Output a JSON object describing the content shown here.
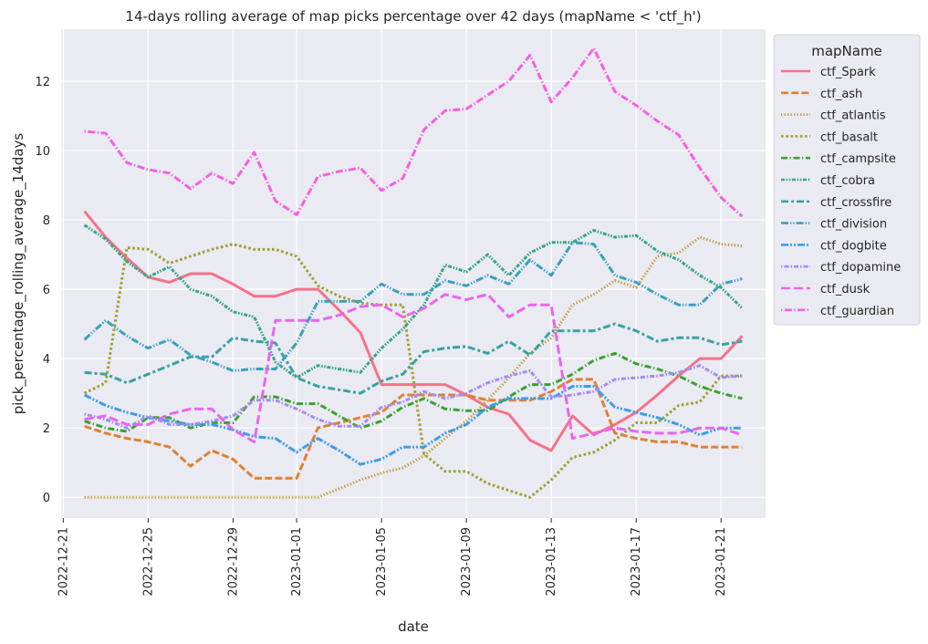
{
  "chart_data": {
    "type": "line",
    "title": "14-days rolling average of map picks percentage over 42 days (mapName < 'ctf_h')",
    "xlabel": "date",
    "ylabel": "pick_percentage_rolling_average_14days",
    "x_ticks": [
      "2022-12-21",
      "2022-12-25",
      "2022-12-29",
      "2023-01-01",
      "2023-01-05",
      "2023-01-09",
      "2023-01-13",
      "2023-01-17",
      "2023-01-21"
    ],
    "y_ticks": [
      0,
      2,
      4,
      6,
      8,
      10,
      12
    ],
    "ylim": [
      -0.6,
      13.5
    ],
    "xlim": [
      "2022-12-21",
      "2023-01-23"
    ],
    "grid": true,
    "legend": {
      "title": "mapName",
      "placement": "outside-top-right"
    },
    "x": [
      "2022-12-22",
      "2022-12-23",
      "2022-12-24",
      "2022-12-25",
      "2022-12-26",
      "2022-12-27",
      "2022-12-28",
      "2022-12-29",
      "2022-12-30",
      "2022-12-31",
      "2023-01-01",
      "2023-01-02",
      "2023-01-03",
      "2023-01-04",
      "2023-01-05",
      "2023-01-06",
      "2023-01-07",
      "2023-01-08",
      "2023-01-09",
      "2023-01-10",
      "2023-01-11",
      "2023-01-12",
      "2023-01-13",
      "2023-01-14",
      "2023-01-15",
      "2023-01-16",
      "2023-01-17",
      "2023-01-18",
      "2023-01-19",
      "2023-01-20",
      "2023-01-21",
      "2023-01-22"
    ],
    "series": [
      {
        "name": "ctf_Spark",
        "color": "#f77189",
        "dash": "solid",
        "values": [
          8.25,
          7.5,
          6.9,
          6.35,
          6.2,
          6.45,
          6.45,
          6.15,
          5.8,
          5.8,
          6.0,
          6.0,
          5.4,
          4.75,
          3.25,
          3.25,
          3.25,
          3.25,
          2.95,
          2.6,
          2.4,
          1.65,
          1.35,
          2.35,
          1.8,
          2.1,
          2.45,
          2.95,
          3.5,
          4.0,
          4.0,
          4.65
        ]
      },
      {
        "name": "ctf_ash",
        "color": "#e08131",
        "dash": "8,3.2",
        "values": [
          2.05,
          1.85,
          1.7,
          1.6,
          1.45,
          0.9,
          1.35,
          1.1,
          0.55,
          0.55,
          0.55,
          2.0,
          2.15,
          2.3,
          2.45,
          2.95,
          2.95,
          2.95,
          2.95,
          2.8,
          2.8,
          2.8,
          3.05,
          3.4,
          3.4,
          1.85,
          1.7,
          1.6,
          1.6,
          1.45,
          1.45,
          1.45
        ]
      },
      {
        "name": "ctf_atlantis",
        "color": "#bb9832",
        "dash": "1.3,2.2",
        "values": [
          0,
          0,
          0,
          0,
          0,
          0,
          0,
          0,
          0,
          0,
          0,
          0,
          0.25,
          0.5,
          0.7,
          0.85,
          1.2,
          1.7,
          2.2,
          2.8,
          3.45,
          4.15,
          4.6,
          5.55,
          5.85,
          6.25,
          6.05,
          6.95,
          7.05,
          7.5,
          7.3,
          7.25
        ]
      },
      {
        "name": "ctf_basalt",
        "color": "#9ca031",
        "dash": "2.6,2.6",
        "values": [
          3.0,
          3.3,
          7.2,
          7.15,
          6.75,
          6.95,
          7.15,
          7.3,
          7.15,
          7.15,
          6.95,
          6.1,
          5.8,
          5.6,
          5.55,
          5.55,
          1.25,
          0.75,
          0.75,
          0.4,
          0.2,
          0.0,
          0.5,
          1.15,
          1.3,
          1.65,
          2.15,
          2.15,
          2.65,
          2.75,
          3.5,
          3.5
        ]
      },
      {
        "name": "ctf_campsite",
        "color": "#3ba131",
        "dash": "7,2.6,1.3,2.6",
        "values": [
          2.2,
          2.0,
          1.9,
          2.3,
          2.3,
          2.0,
          2.15,
          2.15,
          2.9,
          2.9,
          2.7,
          2.7,
          2.35,
          2.0,
          2.2,
          2.6,
          2.85,
          2.55,
          2.5,
          2.5,
          2.9,
          3.25,
          3.25,
          3.55,
          3.95,
          4.15,
          3.85,
          3.7,
          3.5,
          3.2,
          3.0,
          2.85
        ]
      },
      {
        "name": "ctf_cobra",
        "color": "#36a684",
        "dash": "4,1.6,1.6,1.6,1.6,1.6",
        "values": [
          7.85,
          7.45,
          6.8,
          6.35,
          6.65,
          6.0,
          5.8,
          5.35,
          5.2,
          3.9,
          3.45,
          3.8,
          3.7,
          3.6,
          4.3,
          4.85,
          5.55,
          6.7,
          6.5,
          7.0,
          6.4,
          7.05,
          7.35,
          7.35,
          7.7,
          7.5,
          7.55,
          7.1,
          6.85,
          6.4,
          6.05,
          5.45
        ]
      },
      {
        "name": "ctf_crossfire",
        "color": "#38a3a0",
        "dash": "8,3,3,3",
        "values": [
          3.6,
          3.55,
          3.3,
          3.55,
          3.8,
          4.05,
          4.05,
          4.6,
          4.5,
          4.45,
          3.45,
          3.2,
          3.1,
          3.0,
          3.35,
          3.55,
          4.2,
          4.3,
          4.35,
          4.15,
          4.5,
          4.1,
          4.8,
          4.8,
          4.8,
          5.0,
          4.8,
          4.5,
          4.6,
          4.6,
          4.4,
          4.5
        ]
      },
      {
        "name": "ctf_division",
        "color": "#3aa0bd",
        "dash": "8,2,1.3,2,1.3,2",
        "values": [
          4.55,
          5.1,
          4.65,
          4.3,
          4.55,
          4.1,
          3.9,
          3.65,
          3.7,
          3.7,
          4.45,
          5.65,
          5.65,
          5.65,
          6.15,
          5.85,
          5.85,
          6.25,
          6.1,
          6.4,
          6.15,
          6.85,
          6.4,
          7.35,
          7.3,
          6.4,
          6.2,
          5.85,
          5.55,
          5.55,
          6.15,
          6.3
        ]
      },
      {
        "name": "ctf_dogbite",
        "color": "#3d9dea",
        "dash": "8,2,2,2,2,2",
        "values": [
          2.95,
          2.65,
          2.45,
          2.3,
          2.2,
          2.1,
          2.1,
          1.95,
          1.75,
          1.7,
          1.3,
          1.7,
          1.35,
          0.95,
          1.1,
          1.45,
          1.45,
          1.85,
          2.1,
          2.6,
          2.85,
          2.85,
          2.85,
          3.2,
          3.2,
          2.6,
          2.45,
          2.3,
          2.1,
          1.8,
          2.0,
          2.0
        ]
      },
      {
        "name": "ctf_dopamine",
        "color": "#a48cf4",
        "dash": "1.5,2,5,2",
        "values": [
          2.4,
          2.25,
          2.0,
          2.35,
          2.1,
          2.1,
          2.2,
          2.35,
          2.8,
          2.8,
          2.55,
          2.25,
          2.05,
          2.05,
          2.6,
          2.75,
          3.05,
          2.85,
          3.0,
          3.3,
          3.5,
          3.65,
          2.9,
          2.95,
          3.05,
          3.4,
          3.45,
          3.5,
          3.6,
          3.8,
          3.45,
          3.5
        ]
      },
      {
        "name": "ctf_dusk",
        "color": "#e866ee",
        "dash": "10,4",
        "values": [
          2.25,
          2.35,
          2.1,
          2.1,
          2.4,
          2.55,
          2.55,
          1.95,
          1.6,
          5.1,
          5.1,
          5.1,
          5.25,
          5.5,
          5.55,
          5.2,
          5.45,
          5.85,
          5.7,
          5.85,
          5.2,
          5.55,
          5.55,
          1.7,
          1.85,
          2.0,
          1.9,
          1.85,
          1.85,
          2.0,
          2.0,
          1.8
        ]
      },
      {
        "name": "ctf_guardian",
        "color": "#f461dd",
        "dash": "1.3,2.5,8,2.5",
        "values": [
          10.55,
          10.5,
          9.65,
          9.45,
          9.35,
          8.9,
          9.35,
          9.05,
          9.95,
          8.55,
          8.15,
          9.25,
          9.4,
          9.5,
          8.85,
          9.2,
          10.6,
          11.15,
          11.2,
          11.6,
          12.0,
          12.75,
          11.4,
          12.1,
          12.95,
          11.7,
          11.3,
          10.85,
          10.45,
          9.5,
          8.65,
          8.1
        ]
      }
    ]
  }
}
